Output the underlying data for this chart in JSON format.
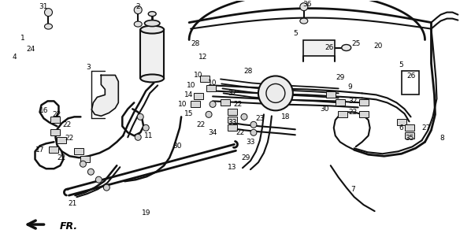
{
  "background_color": "#ffffff",
  "line_color": "#111111",
  "text_color": "#000000",
  "fig_width": 5.98,
  "fig_height": 3.2,
  "dpi": 100
}
